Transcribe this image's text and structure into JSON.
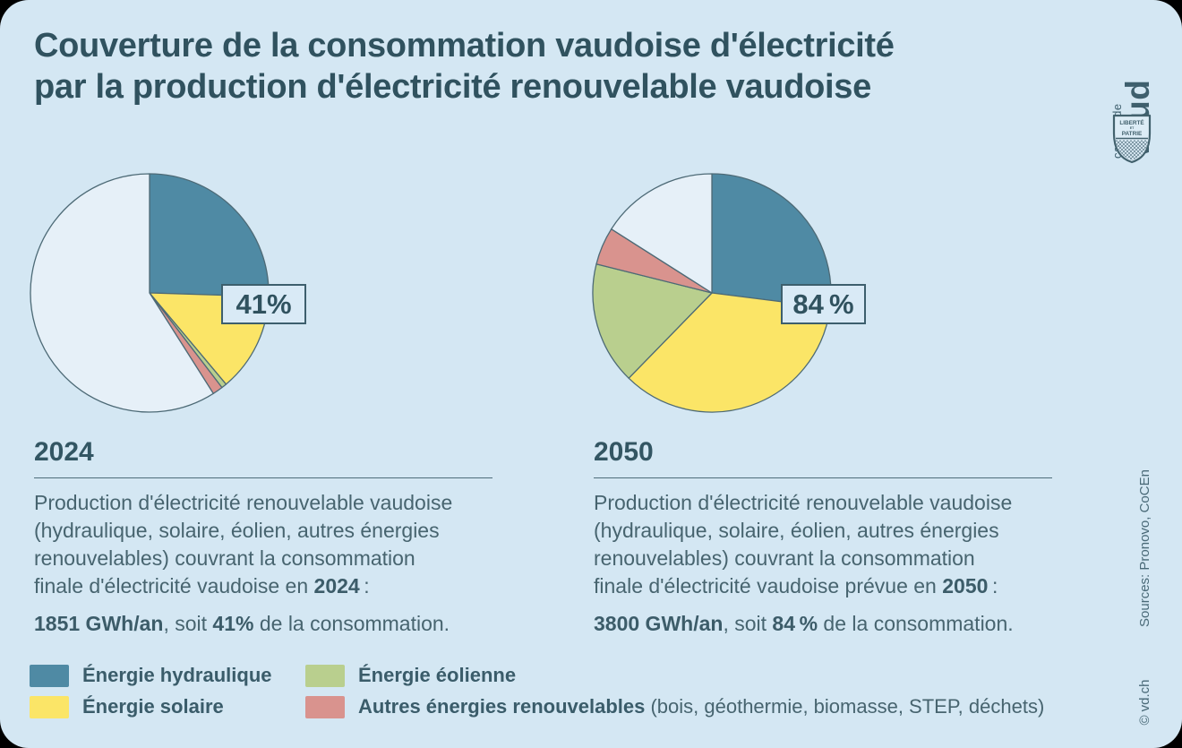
{
  "title": {
    "line1": "Couverture de la consommation vaudoise d'électricité",
    "line2": "par la production d'électricité renouvelable vaudoise"
  },
  "logo": {
    "brand_small": "canton de",
    "brand_large": "vaud",
    "shield_word1": "LIBERTÉ",
    "shield_word2": "ET",
    "shield_word3": "PATRIE"
  },
  "colors": {
    "card_bg": "#d4e7f3",
    "hydraulique": "#4f8aa4",
    "solaire": "#fbe567",
    "eolienne": "#b9cf8e",
    "autres": "#d9938e",
    "non_couvert": "#e6f0f8",
    "pie_outline": "#4d6a76",
    "dark_text": "#30525f",
    "body_text": "#47646f"
  },
  "columns": [
    {
      "year": "2024",
      "pie_label": "41%",
      "desc_lines": [
        "Production d'électricité renouvelable vaudoise",
        "(hydraulique, solaire, éolien, autres énergies",
        "renouvelables) couvrant la consommation"
      ],
      "desc_last_before": "finale d'électricité vaudoise en ",
      "desc_year": "2024",
      "desc_after": " :",
      "stat_value": "1851 GWh/an",
      "stat_mid": ", soit ",
      "stat_pct": "41%",
      "stat_end": " de la consommation."
    },
    {
      "year": "2050",
      "pie_label": "84 %",
      "desc_lines": [
        "Production d'électricité renouvelable vaudoise",
        "(hydraulique, solaire, éolien, autres énergies",
        "renouvelables) couvrant la consommation"
      ],
      "desc_last_before": "finale d'électricité vaudoise prévue en ",
      "desc_year": "2050",
      "desc_after": " :",
      "stat_value": "3800 GWh/an",
      "stat_mid": ", soit ",
      "stat_pct": "84 %",
      "stat_end": " de la consommation."
    }
  ],
  "legend": [
    {
      "label": "Énergie hydraulique",
      "suffix": "",
      "color": "#4f8aa4"
    },
    {
      "label": "Énergie solaire",
      "suffix": "",
      "color": "#fbe567"
    },
    {
      "label": "Énergie éolienne",
      "suffix": "",
      "color": "#b9cf8e"
    },
    {
      "label": "Autres énergies renouvelables",
      "suffix": " (bois, géothermie, biomasse, STEP, déchets)",
      "color": "#d9938e"
    }
  ],
  "side": {
    "sources": "Sources: Pronovo, CoCEn",
    "copyright": "© vd.ch"
  },
  "chart_data": [
    {
      "type": "pie",
      "title": "2024",
      "annotation": "41%",
      "covered_total_pct": 41,
      "production_total": "1851 GWh/an",
      "start_angle": "top",
      "direction": "clockwise",
      "slices": [
        {
          "name": "Énergie hydraulique",
          "value": 25.5,
          "color": "#4f8aa4"
        },
        {
          "name": "Énergie solaire",
          "value": 13.4,
          "color": "#fbe567"
        },
        {
          "name": "Énergie éolienne",
          "value": 0.7,
          "color": "#b9cf8e"
        },
        {
          "name": "Autres énergies renouvelables",
          "value": 1.4,
          "color": "#d9938e"
        },
        {
          "name": "reste (non couvert)",
          "value": 59.0,
          "color": "#e6f0f8"
        }
      ]
    },
    {
      "type": "pie",
      "title": "2050",
      "annotation": "84 %",
      "covered_total_pct": 84,
      "production_total": "3800 GWh/an",
      "start_angle": "top",
      "direction": "clockwise",
      "slices": [
        {
          "name": "Énergie hydraulique",
          "value": 27.0,
          "color": "#4f8aa4"
        },
        {
          "name": "Énergie solaire",
          "value": 35.3,
          "color": "#fbe567"
        },
        {
          "name": "Énergie éolienne",
          "value": 16.6,
          "color": "#b9cf8e"
        },
        {
          "name": "Autres énergies renouvelables",
          "value": 5.1,
          "color": "#d9938e"
        },
        {
          "name": "reste (non couvert)",
          "value": 16.0,
          "color": "#e6f0f8"
        }
      ]
    }
  ]
}
